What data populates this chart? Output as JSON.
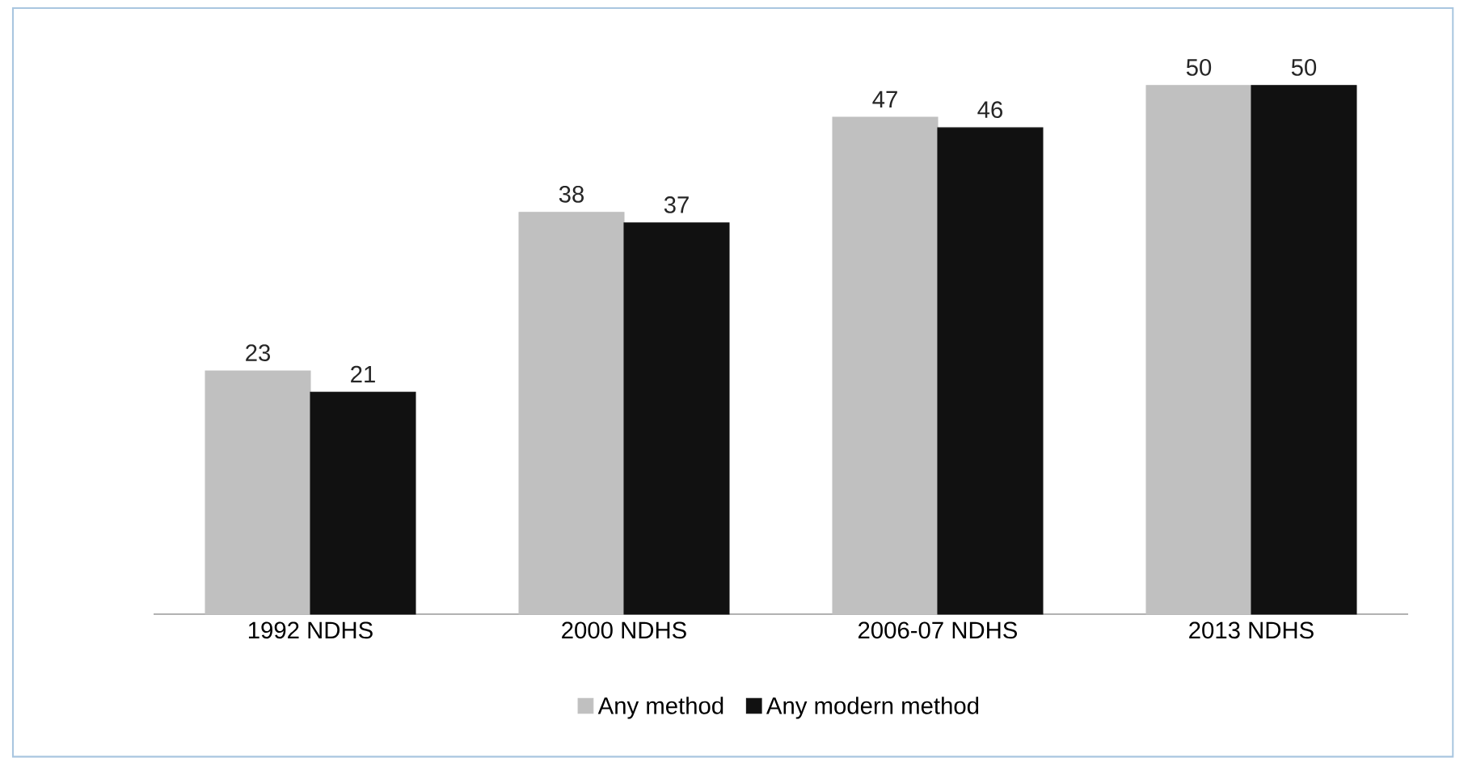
{
  "chart_data": {
    "type": "bar",
    "categories": [
      "1992 NDHS",
      "2000 NDHS",
      "2006-07 NDHS",
      "2013 NDHS"
    ],
    "series": [
      {
        "name": "Any method",
        "color": "#c0c0c0",
        "values": [
          23,
          38,
          47,
          50
        ]
      },
      {
        "name": "Any modern method",
        "color": "#111111",
        "values": [
          21,
          37,
          46,
          50
        ]
      }
    ],
    "data_labels": true,
    "legend": "bottom"
  }
}
